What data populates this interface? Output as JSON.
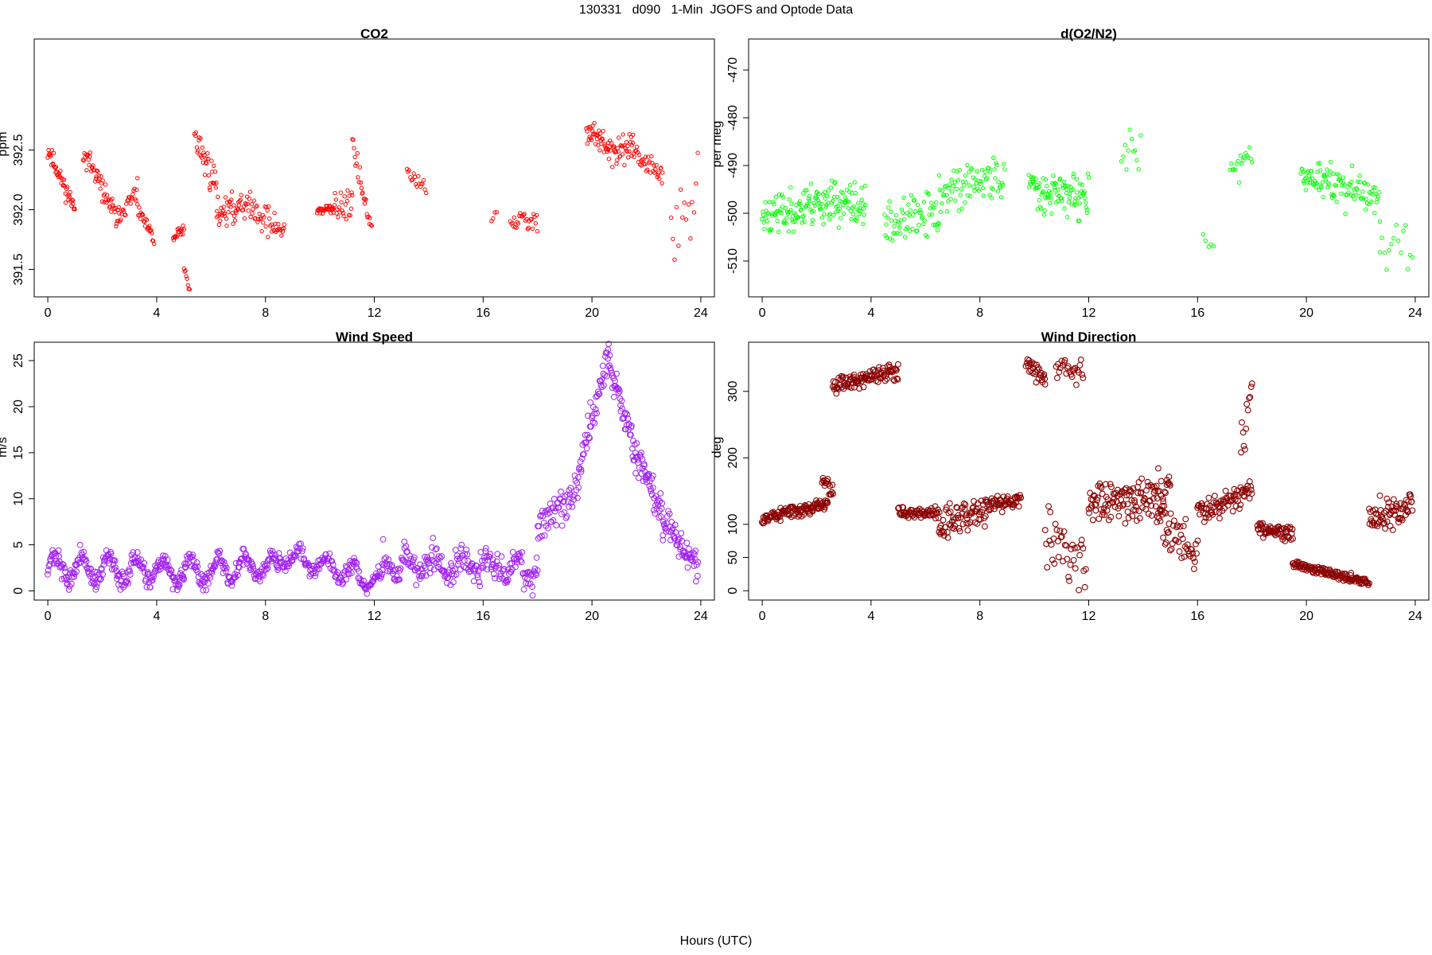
{
  "page": {
    "title": "130331   d090   1-Min  JGOFS and Optode Data",
    "x_caption": "Hours (UTC)"
  },
  "chart_data": [
    {
      "id": "co2",
      "type": "scatter",
      "title": "CO2",
      "xlabel": "",
      "ylabel": "ppm",
      "color": "#ff0000",
      "xlim": [
        -0.5,
        24.5
      ],
      "ylim": [
        391.27,
        393.43
      ],
      "xticks": [
        0,
        4,
        8,
        12,
        16,
        20,
        24
      ],
      "yticks": [
        391.5,
        392.0,
        392.5
      ],
      "ytick_labels": [
        "391.5",
        "392.0",
        "392.5"
      ],
      "seed": 11,
      "segments": [
        {
          "x": [
            0.0,
            1.0
          ],
          "y": [
            392.5,
            392.0
          ],
          "spread": 0.08,
          "n": 46
        },
        {
          "x": [
            1.3,
            2.6
          ],
          "y": [
            392.5,
            391.9
          ],
          "spread": 0.09,
          "n": 55
        },
        {
          "x": [
            2.6,
            3.3
          ],
          "y": [
            391.95,
            392.15
          ],
          "spread": 0.08,
          "n": 25
        },
        {
          "x": [
            3.3,
            3.9
          ],
          "y": [
            392.0,
            391.75
          ],
          "spread": 0.06,
          "n": 25
        },
        {
          "x": [
            4.6,
            5.0
          ],
          "y": [
            391.75,
            391.85
          ],
          "spread": 0.05,
          "n": 18
        },
        {
          "x": [
            5.0,
            5.2
          ],
          "y": [
            391.5,
            391.35
          ],
          "spread": 0.05,
          "n": 8
        },
        {
          "x": [
            5.4,
            6.2
          ],
          "y": [
            392.6,
            392.2
          ],
          "spread": 0.14,
          "n": 35
        },
        {
          "x": [
            6.2,
            7.0
          ],
          "y": [
            392.0,
            392.0
          ],
          "spread": 0.12,
          "n": 35
        },
        {
          "x": [
            7.0,
            8.7
          ],
          "y": [
            392.1,
            391.8
          ],
          "spread": 0.12,
          "n": 60
        },
        {
          "x": [
            9.9,
            10.5
          ],
          "y": [
            392.0,
            392.0
          ],
          "spread": 0.04,
          "n": 30
        },
        {
          "x": [
            10.5,
            11.2
          ],
          "y": [
            392.0,
            392.1
          ],
          "spread": 0.15,
          "n": 25
        },
        {
          "x": [
            11.2,
            11.9
          ],
          "y": [
            392.55,
            391.8
          ],
          "spread": 0.1,
          "n": 25
        },
        {
          "x": [
            13.2,
            13.9
          ],
          "y": [
            392.3,
            392.2
          ],
          "spread": 0.1,
          "n": 18
        },
        {
          "x": [
            16.3,
            16.5
          ],
          "y": [
            391.9,
            391.95
          ],
          "spread": 0.05,
          "n": 4
        },
        {
          "x": [
            17.0,
            18.0
          ],
          "y": [
            391.9,
            391.9
          ],
          "spread": 0.1,
          "n": 28
        },
        {
          "x": [
            19.8,
            20.6
          ],
          "y": [
            392.7,
            392.5
          ],
          "spread": 0.12,
          "n": 40
        },
        {
          "x": [
            20.6,
            21.5
          ],
          "y": [
            392.45,
            392.55
          ],
          "spread": 0.12,
          "n": 40
        },
        {
          "x": [
            21.5,
            22.6
          ],
          "y": [
            392.5,
            392.25
          ],
          "spread": 0.08,
          "n": 38
        },
        {
          "x": [
            22.9,
            23.9
          ],
          "y": [
            391.8,
            392.1
          ],
          "spread": 0.3,
          "n": 15
        }
      ]
    },
    {
      "id": "o2n2",
      "type": "scatter",
      "title": "d(O2/N2)",
      "xlabel": "",
      "ylabel": "per meg",
      "color": "#00ff00",
      "xlim": [
        -0.5,
        24.5
      ],
      "ylim": [
        -517.5,
        -463.5
      ],
      "xticks": [
        0,
        4,
        8,
        12,
        16,
        20,
        24
      ],
      "yticks": [
        -510,
        -500,
        -490,
        -480,
        -470
      ],
      "ytick_labels": [
        "-510",
        "-500",
        "-490",
        "-480",
        "-470"
      ],
      "seed": 23,
      "segments": [
        {
          "x": [
            0.0,
            2.0
          ],
          "y": [
            -501,
            -498
          ],
          "spread": 4.5,
          "n": 90
        },
        {
          "x": [
            2.0,
            3.8
          ],
          "y": [
            -497,
            -499
          ],
          "spread": 4.5,
          "n": 80
        },
        {
          "x": [
            4.5,
            6.5
          ],
          "y": [
            -502,
            -500
          ],
          "spread": 4.5,
          "n": 70
        },
        {
          "x": [
            6.5,
            8.9
          ],
          "y": [
            -496,
            -492
          ],
          "spread": 4.5,
          "n": 80
        },
        {
          "x": [
            9.8,
            12.0
          ],
          "y": [
            -494,
            -497
          ],
          "spread": 4.5,
          "n": 100
        },
        {
          "x": [
            13.2,
            13.9
          ],
          "y": [
            -490,
            -485
          ],
          "spread": 5.0,
          "n": 12
        },
        {
          "x": [
            16.2,
            16.6
          ],
          "y": [
            -505,
            -507
          ],
          "spread": 3.0,
          "n": 5
        },
        {
          "x": [
            17.2,
            18.0
          ],
          "y": [
            -491,
            -489
          ],
          "spread": 4.0,
          "n": 18
        },
        {
          "x": [
            19.8,
            21.0
          ],
          "y": [
            -491,
            -494
          ],
          "spread": 4.0,
          "n": 50
        },
        {
          "x": [
            21.0,
            22.7
          ],
          "y": [
            -494,
            -497
          ],
          "spread": 4.0,
          "n": 60
        },
        {
          "x": [
            22.7,
            23.9
          ],
          "y": [
            -508,
            -505
          ],
          "spread": 5.0,
          "n": 15
        }
      ]
    },
    {
      "id": "wind-speed",
      "type": "scatter",
      "title": "Wind Speed",
      "xlabel": "",
      "ylabel": "m/s",
      "color": "#a020f0",
      "xlim": [
        -0.5,
        24.5
      ],
      "ylim": [
        -1.0,
        27.0
      ],
      "xticks": [
        0,
        4,
        8,
        12,
        16,
        20,
        24
      ],
      "yticks": [
        0,
        5,
        10,
        15,
        20,
        25
      ],
      "ytick_labels": [
        "0",
        "5",
        "10",
        "15",
        "20",
        "25"
      ],
      "seed": 37,
      "segments": [
        {
          "x": [
            0.0,
            5.0
          ],
          "y": [
            2.5,
            2.0
          ],
          "spread": 1.0,
          "wave": 1.3,
          "n": 220
        },
        {
          "x": [
            5.0,
            8.5
          ],
          "y": [
            2.0,
            3.0
          ],
          "spread": 1.0,
          "wave": 1.2,
          "n": 150
        },
        {
          "x": [
            8.5,
            12.3
          ],
          "y": [
            4.0,
            1.0
          ],
          "spread": 0.8,
          "wave": 1.0,
          "n": 150
        },
        {
          "x": [
            12.3,
            18.0
          ],
          "y": [
            3.0,
            2.5
          ],
          "spread": 1.6,
          "wave": 1.0,
          "n": 230
        },
        {
          "x": [
            18.0,
            19.5
          ],
          "y": [
            7.0,
            11.0
          ],
          "spread": 1.8,
          "n": 60
        },
        {
          "x": [
            19.5,
            20.6
          ],
          "y": [
            13.0,
            25.5
          ],
          "spread": 1.8,
          "n": 50
        },
        {
          "x": [
            20.6,
            21.6
          ],
          "y": [
            25.0,
            15.0
          ],
          "spread": 1.8,
          "n": 50
        },
        {
          "x": [
            21.6,
            22.6
          ],
          "y": [
            15.0,
            8.0
          ],
          "spread": 1.8,
          "n": 50
        },
        {
          "x": [
            22.6,
            23.9
          ],
          "y": [
            8.0,
            2.5
          ],
          "spread": 1.8,
          "n": 60
        }
      ]
    },
    {
      "id": "wind-direction",
      "type": "scatter",
      "title": "Wind Direction",
      "xlabel": "",
      "ylabel": "deg",
      "color": "#8b0000",
      "xlim": [
        -0.5,
        24.5
      ],
      "ylim": [
        -14.0,
        374.0
      ],
      "xticks": [
        0,
        4,
        8,
        12,
        16,
        20,
        24
      ],
      "yticks": [
        0,
        50,
        100,
        200,
        300
      ],
      "ytick_labels": [
        "0",
        "50",
        "100",
        "200",
        "300"
      ],
      "seed": 53,
      "segments": [
        {
          "x": [
            0.0,
            2.4
          ],
          "y": [
            110,
            130
          ],
          "spread": 10,
          "n": 110
        },
        {
          "x": [
            2.2,
            2.6
          ],
          "y": [
            170,
            150
          ],
          "spread": 12,
          "n": 18
        },
        {
          "x": [
            2.6,
            5.0
          ],
          "y": [
            310,
            330
          ],
          "spread": 12,
          "n": 110
        },
        {
          "x": [
            5.0,
            6.5
          ],
          "y": [
            120,
            115
          ],
          "spread": 10,
          "n": 60
        },
        {
          "x": [
            6.5,
            8.2
          ],
          "y": [
            100,
            120
          ],
          "spread": 25,
          "n": 70
        },
        {
          "x": [
            8.2,
            9.5
          ],
          "y": [
            130,
            135
          ],
          "spread": 10,
          "n": 55
        },
        {
          "x": [
            9.7,
            10.4
          ],
          "y": [
            340,
            320
          ],
          "spread": 15,
          "n": 30
        },
        {
          "x": [
            10.4,
            11.9
          ],
          "y": [
            100,
            20
          ],
          "spread": 60,
          "n": 40
        },
        {
          "x": [
            10.8,
            11.8
          ],
          "y": [
            340,
            330
          ],
          "spread": 18,
          "n": 25
        },
        {
          "x": [
            12.0,
            15.0
          ],
          "y": [
            135,
            145
          ],
          "spread": 30,
          "n": 130
        },
        {
          "x": [
            14.5,
            16.0
          ],
          "y": [
            110,
            60
          ],
          "spread": 35,
          "n": 50
        },
        {
          "x": [
            16.0,
            18.0
          ],
          "y": [
            120,
            150
          ],
          "spread": 20,
          "n": 80
        },
        {
          "x": [
            17.6,
            18.0
          ],
          "y": [
            220,
            300
          ],
          "spread": 30,
          "n": 12
        },
        {
          "x": [
            18.2,
            19.5
          ],
          "y": [
            95,
            85
          ],
          "spread": 12,
          "n": 60
        },
        {
          "x": [
            19.5,
            22.3
          ],
          "y": [
            40,
            12
          ],
          "spread": 6,
          "n": 130
        },
        {
          "x": [
            22.3,
            23.9
          ],
          "y": [
            110,
            130
          ],
          "spread": 25,
          "n": 70
        }
      ]
    }
  ]
}
